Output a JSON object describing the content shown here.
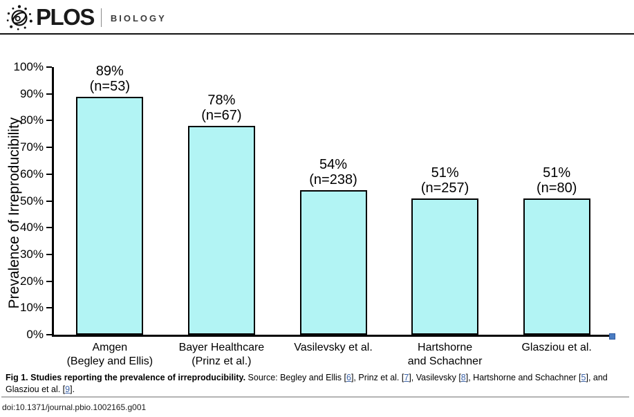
{
  "header": {
    "brand": "PLOS",
    "journal": "BIOLOGY"
  },
  "chart_data": {
    "type": "bar",
    "title": "",
    "xlabel": "",
    "ylabel": "Prevalence of Irreproducibility",
    "ylim": [
      0,
      100
    ],
    "ytick_step": 10,
    "ytick_suffix": "%",
    "grid": false,
    "legend": "none",
    "bar_fill": "#B2F4F4",
    "bar_border": "#000000",
    "categories": [
      "Amgen (Begley and Ellis)",
      "Bayer Healthcare (Prinz et al.)",
      "Vasilevsky et al.",
      "Hartshorne and Schachner",
      "Glasziou et al."
    ],
    "values": [
      89,
      78,
      54,
      51,
      51
    ],
    "bars": [
      {
        "category_lines": [
          "Amgen",
          "(Begley and Ellis)"
        ],
        "value": 89,
        "n": 53,
        "annotation_lines": [
          "89%",
          "(n=53)"
        ]
      },
      {
        "category_lines": [
          "Bayer Healthcare",
          "(Prinz et al.)"
        ],
        "value": 78,
        "n": 67,
        "annotation_lines": [
          "78%",
          "(n=67)"
        ]
      },
      {
        "category_lines": [
          "Vasilevsky et al."
        ],
        "value": 54,
        "n": 238,
        "annotation_lines": [
          "54%",
          "(n=238)"
        ]
      },
      {
        "category_lines": [
          "Hartshorne",
          "and Schachner"
        ],
        "value": 51,
        "n": 257,
        "annotation_lines": [
          "51%",
          "(n=257)"
        ]
      },
      {
        "category_lines": [
          "Glasziou et al."
        ],
        "value": 51,
        "n": 80,
        "annotation_lines": [
          "51%",
          "(n=80)"
        ]
      }
    ]
  },
  "caption": {
    "fig_label": "Fig 1. Studies reporting the prevalence of irreproducibility.",
    "link_color": "#3c63a8",
    "segments": [
      {
        "text": " Source: Begley and Ellis ["
      },
      {
        "link": "6"
      },
      {
        "text": "], Prinz et al. ["
      },
      {
        "link": "7"
      },
      {
        "text": "], Vasilevsky ["
      },
      {
        "link": "8"
      },
      {
        "text": "], Hartshorne and Schachner ["
      },
      {
        "link": "5"
      },
      {
        "text": "], and Glasziou et al. ["
      },
      {
        "link": "9"
      },
      {
        "text": "]."
      }
    ]
  },
  "footer": {
    "doi": "doi:10.1371/journal.pbio.1002165.g001"
  }
}
